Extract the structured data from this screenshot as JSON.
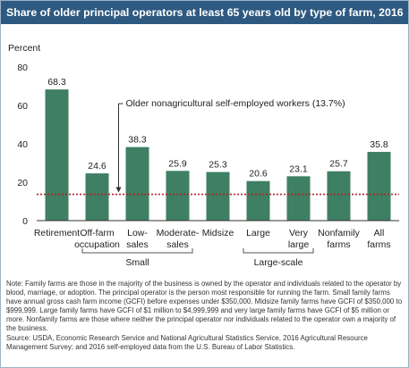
{
  "title": "Share of older principal operators at least 65 years old by type of farm, 2016",
  "chart_data": {
    "type": "bar",
    "ylabel": "Percent",
    "ylim": [
      0,
      80
    ],
    "yticks": [
      0,
      20,
      40,
      60,
      80
    ],
    "grid": false,
    "categories": [
      [
        "Retirement"
      ],
      [
        "Off-farm",
        "occupation"
      ],
      [
        "Low-",
        "sales"
      ],
      [
        "Moderate-",
        "sales"
      ],
      [
        "Midsize"
      ],
      [
        "Large"
      ],
      [
        "Very",
        "large"
      ],
      [
        "Nonfamily",
        "farms"
      ],
      [
        "All",
        "farms"
      ]
    ],
    "values": [
      68.3,
      24.6,
      38.3,
      25.9,
      25.3,
      20.6,
      23.1,
      25.7,
      35.8
    ],
    "value_labels": [
      "68.3",
      "24.6",
      "38.3",
      "25.9",
      "25.3",
      "20.6",
      "23.1",
      "25.7",
      "35.8"
    ],
    "bar_color": "#3f7f63",
    "reference_line": {
      "value": 13.7,
      "label": "Older nonagricultural self-employed workers (13.7%)",
      "color": "#b0242a"
    },
    "groups": [
      {
        "label": "Small",
        "from": 1,
        "to": 3
      },
      {
        "label": "Large-scale",
        "from": 5,
        "to": 6
      }
    ]
  },
  "note": "Note: Family farms are those in the majority of the business is owned by the operator and individuals related to the operator by blood, marriage, or adoption. The principal operator is the person most responsible for running the farm. Small family farms have annual gross cash farm income (GCFI) before expenses under $350,000. Midsize family farms have GCFI of $350,000 to $999,999. Large family farms have GCFI of $1 million to $4,999,999 and very large family farms have GCFI of $5 million or more. Nonfamily farms are those where neither the principal operator nor individuals related to the operator own a majority of the business.",
  "source": "Source: USDA, Economic Research Service and National Agricultural Statistics Service, 2016 Agricultural Resource Management Survey; and 2016 self-employed data from the U.S. Bureau of Labor Statistics."
}
